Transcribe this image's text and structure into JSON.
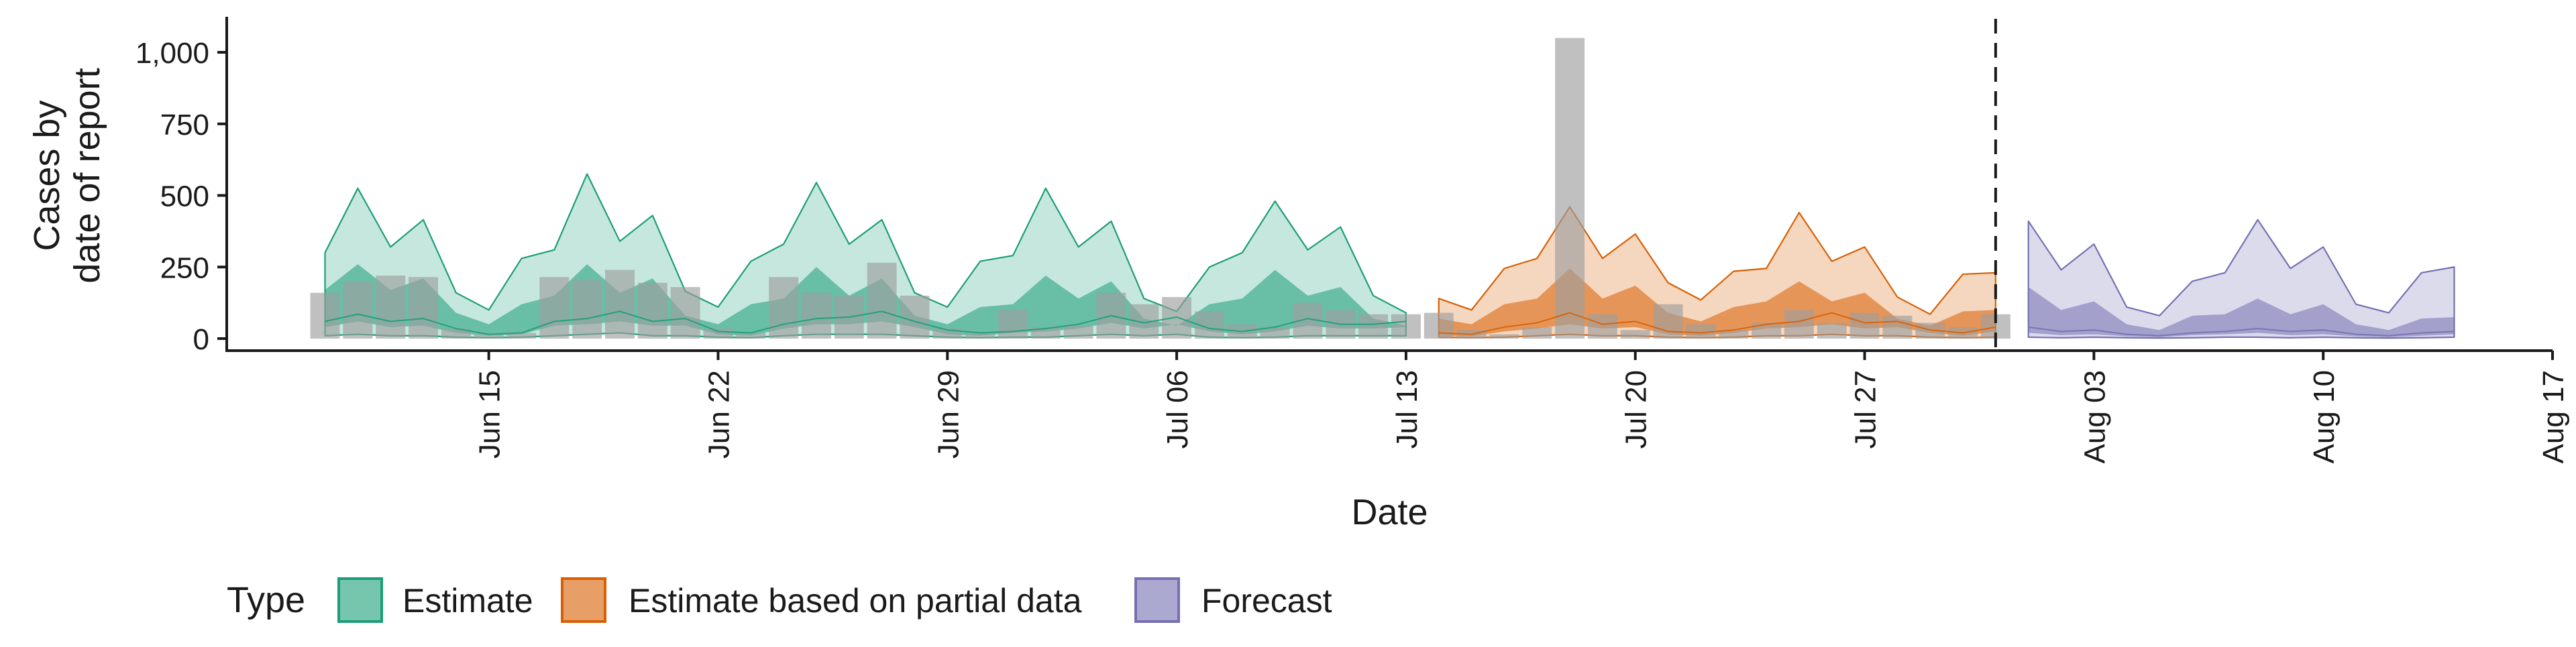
{
  "chart_data": {
    "type": "area",
    "title": "",
    "xlabel": "Date",
    "ylabel": [
      "Cases by",
      "date of report"
    ],
    "y_ticks": [
      0,
      250,
      500,
      750,
      1000
    ],
    "y_tick_labels": [
      "0",
      "250",
      "500",
      "750",
      "1,000"
    ],
    "ylim": [
      0,
      1050
    ],
    "xlim": [
      "2020-06-07",
      "2020-08-17"
    ],
    "x_ticks": [
      "2020-06-15",
      "2020-06-22",
      "2020-06-29",
      "2020-07-06",
      "2020-07-13",
      "2020-07-20",
      "2020-07-27",
      "2020-08-03",
      "2020-08-10",
      "2020-08-17"
    ],
    "x_tick_labels": [
      "Jun 15",
      "Jun 22",
      "Jun 29",
      "Jul 06",
      "Jul 13",
      "Jul 20",
      "Jul 27",
      "Aug 03",
      "Aug 10",
      "Aug 17"
    ],
    "vline_date": "2020-07-31",
    "grid": false,
    "legend_position": "bottom",
    "legend_title": "Type",
    "colors": {
      "Estimate": "#1b9e77",
      "Estimate based on partial data": "#d95f02",
      "Forecast": "#7570b3",
      "observed": "#9e9e9e"
    },
    "observed": {
      "dates": [
        "2020-06-10",
        "2020-06-11",
        "2020-06-12",
        "2020-06-13",
        "2020-06-14",
        "2020-06-15",
        "2020-06-16",
        "2020-06-17",
        "2020-06-18",
        "2020-06-19",
        "2020-06-20",
        "2020-06-21",
        "2020-06-22",
        "2020-06-23",
        "2020-06-24",
        "2020-06-25",
        "2020-06-26",
        "2020-06-27",
        "2020-06-28",
        "2020-06-29",
        "2020-06-30",
        "2020-07-01",
        "2020-07-02",
        "2020-07-03",
        "2020-07-04",
        "2020-07-05",
        "2020-07-06",
        "2020-07-07",
        "2020-07-08",
        "2020-07-09",
        "2020-07-10",
        "2020-07-11",
        "2020-07-12",
        "2020-07-13",
        "2020-07-14",
        "2020-07-15",
        "2020-07-16",
        "2020-07-17",
        "2020-07-18",
        "2020-07-19",
        "2020-07-20",
        "2020-07-21",
        "2020-07-22",
        "2020-07-23",
        "2020-07-24",
        "2020-07-25",
        "2020-07-26",
        "2020-07-27",
        "2020-07-28",
        "2020-07-29",
        "2020-07-30",
        "2020-07-31"
      ],
      "values": [
        160,
        200,
        220,
        215,
        35,
        15,
        20,
        215,
        205,
        240,
        195,
        180,
        35,
        20,
        215,
        160,
        150,
        265,
        150,
        35,
        20,
        100,
        40,
        45,
        160,
        120,
        145,
        95,
        50,
        40,
        125,
        100,
        85,
        85,
        90,
        30,
        15,
        40,
        1050,
        85,
        30,
        120,
        50,
        30,
        55,
        100,
        55,
        90,
        80,
        55,
        40,
        85
      ]
    },
    "series": [
      {
        "name": "Estimate",
        "start": "2020-06-10",
        "median": [
          60,
          85,
          60,
          70,
          35,
          15,
          20,
          60,
          70,
          95,
          60,
          70,
          25,
          20,
          50,
          70,
          75,
          95,
          60,
          30,
          20,
          25,
          35,
          50,
          80,
          55,
          75,
          35,
          25,
          40,
          70,
          50,
          50,
          60
        ],
        "lower90": [
          10,
          15,
          10,
          10,
          5,
          3,
          5,
          10,
          15,
          20,
          10,
          10,
          5,
          3,
          10,
          15,
          15,
          15,
          10,
          5,
          3,
          5,
          5,
          10,
          15,
          10,
          15,
          5,
          3,
          5,
          10,
          10,
          10,
          10
        ],
        "upper90": [
          300,
          525,
          320,
          415,
          160,
          100,
          280,
          310,
          575,
          340,
          430,
          165,
          110,
          270,
          330,
          545,
          330,
          415,
          160,
          110,
          270,
          290,
          525,
          320,
          410,
          140,
          95,
          250,
          300,
          480,
          310,
          390,
          150,
          90
        ],
        "lower50": [
          40,
          60,
          40,
          45,
          20,
          10,
          15,
          45,
          50,
          60,
          45,
          45,
          15,
          10,
          35,
          50,
          50,
          60,
          40,
          15,
          10,
          20,
          25,
          35,
          55,
          35,
          50,
          25,
          15,
          25,
          45,
          35,
          35,
          40
        ],
        "upper50": [
          170,
          260,
          170,
          210,
          90,
          50,
          120,
          150,
          260,
          160,
          210,
          80,
          50,
          120,
          140,
          250,
          150,
          210,
          80,
          50,
          110,
          120,
          220,
          140,
          200,
          70,
          45,
          120,
          140,
          240,
          150,
          180,
          70,
          45
        ]
      },
      {
        "name": "Estimate based on partial data",
        "start": "2020-07-14",
        "median": [
          20,
          15,
          40,
          55,
          90,
          50,
          60,
          25,
          20,
          30,
          50,
          60,
          90,
          55,
          60,
          30,
          20,
          40
        ],
        "lower90": [
          5,
          3,
          5,
          10,
          15,
          10,
          10,
          5,
          3,
          5,
          10,
          10,
          15,
          10,
          10,
          5,
          3,
          5
        ],
        "upper90": [
          140,
          100,
          245,
          280,
          460,
          280,
          365,
          195,
          135,
          235,
          245,
          440,
          270,
          320,
          145,
          85,
          225,
          230
        ],
        "lower50": [
          10,
          8,
          25,
          35,
          50,
          35,
          40,
          15,
          10,
          20,
          35,
          40,
          50,
          35,
          40,
          20,
          10,
          25
        ],
        "upper50": [
          70,
          50,
          120,
          140,
          245,
          140,
          185,
          90,
          60,
          110,
          130,
          200,
          130,
          160,
          70,
          45,
          95,
          100
        ]
      },
      {
        "name": "Forecast",
        "start": "2020-08-01",
        "median": [
          40,
          25,
          30,
          15,
          10,
          20,
          25,
          35,
          25,
          30,
          15,
          10,
          20,
          25
        ],
        "lower90": [
          5,
          3,
          5,
          3,
          2,
          3,
          5,
          5,
          3,
          5,
          3,
          2,
          3,
          5
        ],
        "upper90": [
          410,
          240,
          330,
          110,
          80,
          200,
          230,
          415,
          245,
          320,
          120,
          90,
          230,
          250
        ],
        "lower50": [
          20,
          12,
          15,
          8,
          5,
          12,
          15,
          20,
          12,
          15,
          8,
          5,
          10,
          15
        ],
        "upper50": [
          180,
          100,
          130,
          50,
          30,
          80,
          85,
          140,
          85,
          120,
          50,
          30,
          70,
          75
        ]
      }
    ]
  }
}
